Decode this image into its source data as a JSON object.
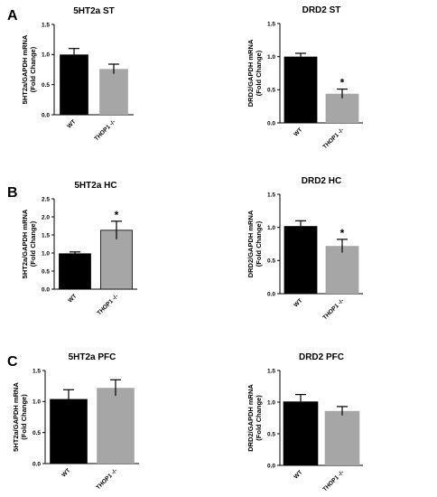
{
  "panel_letters": [
    "A",
    "B",
    "C"
  ],
  "chart_data": [
    {
      "type": "bar",
      "panel": "A",
      "title": "5HT2a ST",
      "ylabel": [
        "5HT2a/GAPDH mRNA",
        "(Fold Change)"
      ],
      "categories": [
        "WT",
        "THOP1 -/-"
      ],
      "values": [
        1.0,
        0.76
      ],
      "errors": [
        0.1,
        0.08
      ],
      "significance": [
        "",
        ""
      ],
      "ylim": [
        0,
        1.5
      ],
      "yticks": [
        "0.0",
        "0.5",
        "1.0",
        "1.5"
      ],
      "colors": [
        "#000000",
        "#a6a6a6"
      ],
      "grid": false
    },
    {
      "type": "bar",
      "panel": "A",
      "title": "DRD2 ST",
      "ylabel": [
        "DRD2/GAPDH mRNA",
        "(Fold Change)"
      ],
      "categories": [
        "WT",
        "THOP1 -/-"
      ],
      "values": [
        1.0,
        0.44
      ],
      "errors": [
        0.05,
        0.07
      ],
      "significance": [
        "",
        "*"
      ],
      "ylim": [
        0,
        1.5
      ],
      "yticks": [
        "0.0",
        "0.5",
        "1.0",
        "1.5"
      ],
      "colors": [
        "#000000",
        "#a6a6a6"
      ],
      "grid": false
    },
    {
      "type": "bar",
      "panel": "B",
      "title": "5HT2a HC",
      "ylabel": [
        "5HT2a/GAPDH mRNA",
        "(Fold Change)"
      ],
      "categories": [
        "WT",
        "THOP1 -/-"
      ],
      "values": [
        0.98,
        1.63
      ],
      "errors": [
        0.05,
        0.25
      ],
      "significance": [
        "",
        "*"
      ],
      "ylim": [
        0,
        2.5
      ],
      "yticks": [
        "0.0",
        "0.5",
        "1.0",
        "1.5",
        "2.0",
        "2.5"
      ],
      "colors": [
        "#000000",
        "#a6a6a6"
      ],
      "grid": false
    },
    {
      "type": "bar",
      "panel": "B",
      "title": "DRD2 HC",
      "ylabel": [
        "DRD2/GAPDH mRNA",
        "(Fold Change)"
      ],
      "categories": [
        "WT",
        "THOP1 -/-"
      ],
      "values": [
        1.02,
        0.72
      ],
      "errors": [
        0.08,
        0.1
      ],
      "significance": [
        "",
        "*"
      ],
      "ylim": [
        0,
        1.5
      ],
      "yticks": [
        "0.0",
        "0.5",
        "1.0",
        "1.5"
      ],
      "colors": [
        "#000000",
        "#a6a6a6"
      ],
      "grid": false
    },
    {
      "type": "bar",
      "panel": "C",
      "title": "5HT2a PFC",
      "ylabel": [
        "5HT2a/GAPDH mRNA",
        "(Fold Change)"
      ],
      "categories": [
        "WT",
        "THOP1 -/-"
      ],
      "values": [
        1.04,
        1.22
      ],
      "errors": [
        0.15,
        0.13
      ],
      "significance": [
        "",
        ""
      ],
      "ylim": [
        0,
        1.5
      ],
      "yticks": [
        "0.0",
        "0.5",
        "1.0",
        "1.5"
      ],
      "colors": [
        "#000000",
        "#a6a6a6"
      ],
      "grid": false
    },
    {
      "type": "bar",
      "panel": "C",
      "title": "DRD2 PFC",
      "ylabel": [
        "DRD2/GAPDH mRNA",
        "(Fold Change)"
      ],
      "categories": [
        "WT",
        "THOP1 -/-"
      ],
      "values": [
        1.01,
        0.86
      ],
      "errors": [
        0.11,
        0.07
      ],
      "significance": [
        "",
        ""
      ],
      "ylim": [
        0,
        1.5
      ],
      "yticks": [
        "0.0",
        "0.5",
        "1.0",
        "1.5"
      ],
      "colors": [
        "#000000",
        "#a6a6a6"
      ],
      "grid": false
    }
  ]
}
